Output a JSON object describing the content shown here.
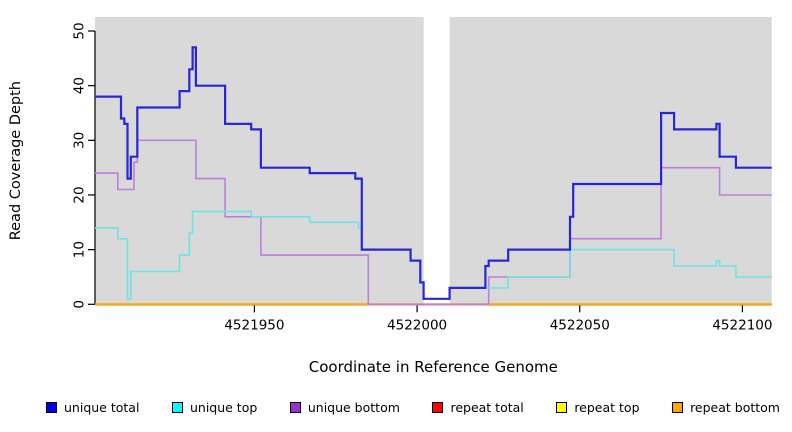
{
  "chart_data": {
    "type": "line",
    "subtype": "step",
    "title": "",
    "xlabel": "Coordinate in Reference Genome",
    "ylabel": "Read Coverage Depth",
    "xlim": [
      4521901,
      4522109
    ],
    "ylim": [
      0,
      52.5
    ],
    "x_ticks": [
      4521950,
      4522000,
      4522050,
      4522100
    ],
    "y_ticks": [
      0,
      10,
      20,
      30,
      40,
      50
    ],
    "grid": false,
    "panel_background": "#d9d9d9",
    "gap_region": {
      "x_start": 4522002,
      "x_end": 4522010,
      "color": "#ffffff"
    },
    "legend_position": "bottom",
    "series": [
      {
        "name": "unique total",
        "legend_color": "#0000ee",
        "line_color": "#2727d8",
        "line_width": 2.2,
        "steps": [
          [
            4521901,
            38
          ],
          [
            4521909,
            34
          ],
          [
            4521910,
            33
          ],
          [
            4521911,
            23
          ],
          [
            4521912,
            27
          ],
          [
            4521914,
            36
          ],
          [
            4521927,
            39
          ],
          [
            4521930,
            43
          ],
          [
            4521931,
            47
          ],
          [
            4521932,
            40
          ],
          [
            4521941,
            33
          ],
          [
            4521949,
            32
          ],
          [
            4521952,
            25
          ],
          [
            4521967,
            24
          ],
          [
            4521981,
            23
          ],
          [
            4521983,
            10
          ],
          [
            4521998,
            8
          ],
          [
            4522001,
            4
          ],
          [
            4522002,
            1
          ],
          [
            4522010,
            3
          ],
          [
            4522021,
            7
          ],
          [
            4522022,
            8
          ],
          [
            4522028,
            10
          ],
          [
            4522047,
            16
          ],
          [
            4522048,
            22
          ],
          [
            4522075,
            35
          ],
          [
            4522079,
            32
          ],
          [
            4522092,
            33
          ],
          [
            4522093,
            27
          ],
          [
            4522098,
            25
          ],
          [
            4522109,
            25
          ]
        ]
      },
      {
        "name": "unique top",
        "legend_color": "#00ffff",
        "line_color": "#6fe3e3",
        "line_width": 1.6,
        "steps": [
          [
            4521901,
            14
          ],
          [
            4521908,
            12
          ],
          [
            4521911,
            1
          ],
          [
            4521912,
            6
          ],
          [
            4521927,
            9
          ],
          [
            4521930,
            13
          ],
          [
            4521931,
            17
          ],
          [
            4521949,
            16
          ],
          [
            4521967,
            15
          ],
          [
            4521982,
            14
          ],
          [
            4521983,
            10
          ],
          [
            4521998,
            8
          ],
          [
            4522001,
            4
          ],
          [
            4522002,
            1
          ],
          [
            4522010,
            3
          ],
          [
            4522028,
            5
          ],
          [
            4522047,
            10
          ],
          [
            4522079,
            7
          ],
          [
            4522092,
            8
          ],
          [
            4522093,
            7
          ],
          [
            4522098,
            5
          ],
          [
            4522109,
            5
          ]
        ]
      },
      {
        "name": "unique bottom",
        "legend_color": "#9932cc",
        "line_color": "#bd7fde",
        "line_width": 1.6,
        "steps": [
          [
            4521901,
            24
          ],
          [
            4521908,
            21
          ],
          [
            4521913,
            26
          ],
          [
            4521914,
            30
          ],
          [
            4521932,
            23
          ],
          [
            4521941,
            16
          ],
          [
            4521952,
            9
          ],
          [
            4521985,
            0
          ],
          [
            4522022,
            5
          ],
          [
            4522047,
            12
          ],
          [
            4522075,
            25
          ],
          [
            4522093,
            20
          ],
          [
            4522109,
            20
          ]
        ]
      },
      {
        "name": "repeat total",
        "legend_color": "#ff0000",
        "line_color": "#e8334d",
        "line_width": 1.6,
        "steps": [
          [
            4521901,
            0
          ],
          [
            4522109,
            0
          ]
        ]
      },
      {
        "name": "repeat top",
        "legend_color": "#ffff00",
        "line_color": "#ffff00",
        "line_width": 1.6,
        "steps": [
          [
            4521901,
            0
          ],
          [
            4522109,
            0
          ]
        ]
      },
      {
        "name": "repeat bottom",
        "legend_color": "#ffa500",
        "line_color": "#ffa500",
        "line_width": 2,
        "steps": [
          [
            4521901,
            0
          ],
          [
            4522109,
            0
          ]
        ]
      }
    ],
    "draw_order": [
      "repeat total",
      "repeat top",
      "repeat bottom",
      "unique bottom",
      "unique top",
      "unique total"
    ],
    "legend": [
      {
        "label": "unique total",
        "color": "#0000ee"
      },
      {
        "label": "unique top",
        "color": "#00ffff"
      },
      {
        "label": "unique bottom",
        "color": "#9932cc"
      },
      {
        "label": "repeat total",
        "color": "#ff0000"
      },
      {
        "label": "repeat top",
        "color": "#ffff00"
      },
      {
        "label": "repeat bottom",
        "color": "#ffa500"
      }
    ]
  }
}
